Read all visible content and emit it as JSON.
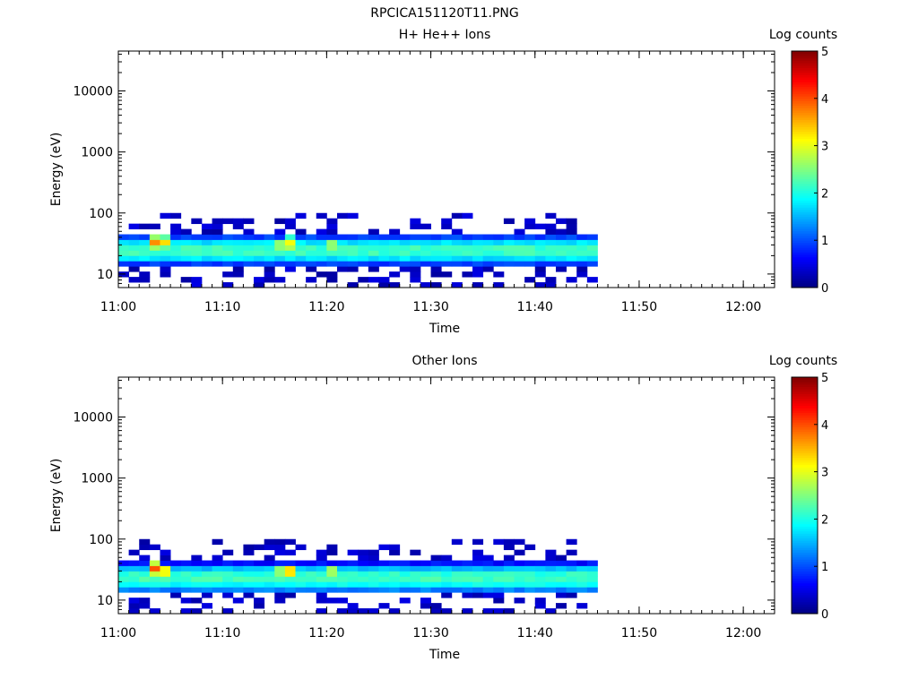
{
  "figure": {
    "title": "RPCICA151120T11.PNG"
  },
  "colorscale": [
    "#000080",
    "#0000ff",
    "#0080ff",
    "#00ffff",
    "#80ff80",
    "#ffff00",
    "#ff8000",
    "#ff0000",
    "#800000"
  ],
  "chart_data": [
    {
      "type": "heatmap",
      "title": "H+ He++ Ions",
      "xlabel": "Time",
      "ylabel": "Energy (eV)",
      "x_tick_labels": [
        "11:00",
        "11:10",
        "11:20",
        "11:30",
        "11:40",
        "11:50",
        "12:00"
      ],
      "y_tick_labels": [
        "10",
        "100",
        "1000",
        "10000"
      ],
      "y_scale": "log",
      "ylim": [
        6,
        45000
      ],
      "xlim": [
        "11:00",
        "12:03"
      ],
      "data_end_time": "11:46",
      "colorbar": {
        "label": "Log counts",
        "ticks": [
          "0",
          "1",
          "2",
          "3",
          "4",
          "5"
        ],
        "range": [
          0,
          5
        ]
      },
      "core_band_eV": [
        15,
        40
      ],
      "core_log_counts": 2.2,
      "hotspots": [
        {
          "time": "11:03",
          "energy_eV": 33,
          "log_counts": 3.7
        },
        {
          "time": "11:04",
          "energy_eV": 33,
          "log_counts": 3.3
        },
        {
          "time": "11:15",
          "energy_eV": 30,
          "log_counts": 3.0
        },
        {
          "time": "11:16",
          "energy_eV": 31,
          "log_counts": 3.4
        },
        {
          "time": "11:20",
          "energy_eV": 30,
          "log_counts": 3.0
        }
      ]
    },
    {
      "type": "heatmap",
      "title": "Other Ions",
      "xlabel": "Time",
      "ylabel": "Energy (eV)",
      "x_tick_labels": [
        "11:00",
        "11:10",
        "11:20",
        "11:30",
        "11:40",
        "11:50",
        "12:00"
      ],
      "y_tick_labels": [
        "10",
        "100",
        "1000",
        "10000"
      ],
      "y_scale": "log",
      "ylim": [
        6,
        45000
      ],
      "xlim": [
        "11:00",
        "12:03"
      ],
      "data_end_time": "11:46",
      "colorbar": {
        "label": "Log counts",
        "ticks": [
          "0",
          "1",
          "2",
          "3",
          "4",
          "5"
        ],
        "range": [
          0,
          5
        ]
      },
      "core_band_eV": [
        14,
        38
      ],
      "core_log_counts": 2.2,
      "hotspots": [
        {
          "time": "11:03",
          "energy_eV": 33,
          "log_counts": 4.0
        },
        {
          "time": "11:04",
          "energy_eV": 30,
          "log_counts": 3.6
        },
        {
          "time": "11:15",
          "energy_eV": 30,
          "log_counts": 3.0
        },
        {
          "time": "11:16",
          "energy_eV": 30,
          "log_counts": 3.8
        },
        {
          "time": "11:20",
          "energy_eV": 30,
          "log_counts": 3.1
        }
      ]
    }
  ]
}
